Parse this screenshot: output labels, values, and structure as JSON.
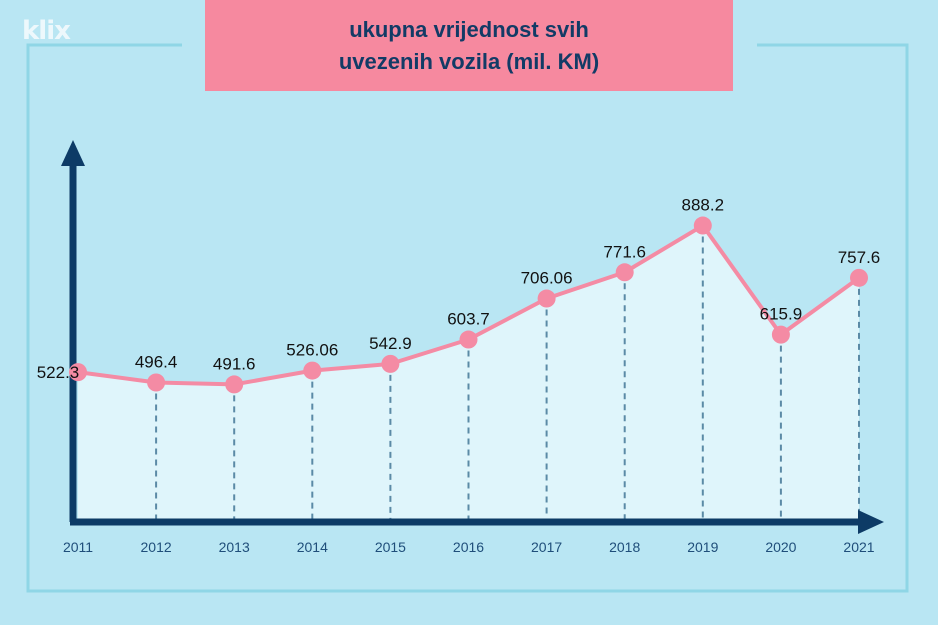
{
  "logo": "klix",
  "title": [
    "ukupna vrijednost svih",
    "uvezenih vozila (mil. KM)"
  ],
  "colors": {
    "background": "#b9e6f3",
    "title_bg": "#f6899f",
    "title_text": "#123b66",
    "axis": "#0d3b66",
    "line": "#f48ba4",
    "marker": "#f48ba4",
    "area": "#dff5fb",
    "dashed": "#5b8aa6",
    "frame": "#8fd6e6"
  },
  "chart_data": {
    "type": "line",
    "title": "ukupna vrijednost svih uvezenih vozila (mil. KM)",
    "xlabel": "",
    "ylabel": "",
    "categories": [
      "2011",
      "2012",
      "2013",
      "2014",
      "2015",
      "2016",
      "2017",
      "2018",
      "2019",
      "2020",
      "2021"
    ],
    "values": [
      522.3,
      496.4,
      491.6,
      526.06,
      542.9,
      603.7,
      706.06,
      771.6,
      888.2,
      615.9,
      757.6
    ],
    "labels": [
      "522.3",
      "496.4",
      "491.6",
      "526.06",
      "542.9",
      "603.7",
      "706.06",
      "771.6",
      "888.2",
      "615.9",
      "757.6"
    ],
    "grid": false
  }
}
